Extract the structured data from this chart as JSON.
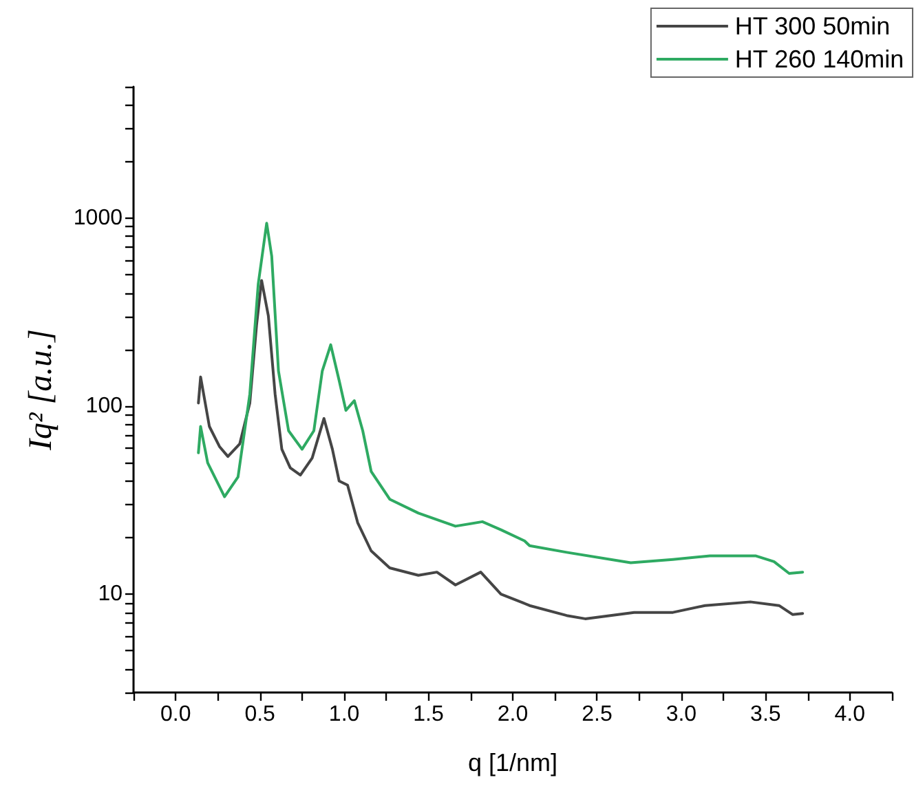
{
  "chart_data": {
    "type": "line",
    "xlabel": "q [1/nm]",
    "ylabel": "Iq² [a.u.]",
    "log": "y",
    "grid": false,
    "legend": "top right",
    "marker": "none",
    "line_style": "solid",
    "xlim": [
      -0.25,
      4.25
    ],
    "xticks": [
      {
        "value": -0.25,
        "label": null
      },
      {
        "value": 0,
        "label": "0.0"
      },
      {
        "value": 0.25,
        "label": null
      },
      {
        "value": 0.5,
        "label": "0.5"
      },
      {
        "value": 0.75,
        "label": null
      },
      {
        "value": 1,
        "label": "1.0"
      },
      {
        "value": 1.25,
        "label": null
      },
      {
        "value": 1.5,
        "label": "1.5"
      },
      {
        "value": 1.75,
        "label": null
      },
      {
        "value": 2,
        "label": "2.0"
      },
      {
        "value": 2.25,
        "label": null
      },
      {
        "value": 2.5,
        "label": "2.5"
      },
      {
        "value": 2.75,
        "label": null
      },
      {
        "value": 3,
        "label": "3.0"
      },
      {
        "value": 3.25,
        "label": null
      },
      {
        "value": 3.5,
        "label": "3.5"
      },
      {
        "value": 3.75,
        "label": null
      },
      {
        "value": 4,
        "label": "4.0"
      },
      {
        "value": 4.25,
        "label": null
      }
    ],
    "ylim": [
      3,
      5000
    ],
    "yticks": [
      {
        "value": 3,
        "label": null
      },
      {
        "value": 4,
        "label": null
      },
      {
        "value": 5,
        "label": null
      },
      {
        "value": 6,
        "label": null
      },
      {
        "value": 7,
        "label": null
      },
      {
        "value": 8,
        "label": null
      },
      {
        "value": 9,
        "label": null
      },
      10,
      {
        "value": 20,
        "label": null
      },
      {
        "value": 30,
        "label": null
      },
      {
        "value": 40,
        "label": null
      },
      {
        "value": 50,
        "label": null
      },
      {
        "value": 60,
        "label": null
      },
      {
        "value": 70,
        "label": null
      },
      {
        "value": 80,
        "label": null
      },
      {
        "value": 90,
        "label": null
      },
      100,
      {
        "value": 200,
        "label": null
      },
      {
        "value": 300,
        "label": null
      },
      {
        "value": 400,
        "label": null
      },
      {
        "value": 500,
        "label": null
      },
      {
        "value": 600,
        "label": null
      },
      {
        "value": 700,
        "label": null
      },
      {
        "value": 800,
        "label": null
      },
      {
        "value": 900,
        "label": null
      },
      1000,
      {
        "value": 2000,
        "label": null
      },
      {
        "value": 3000,
        "label": null
      },
      {
        "value": 4000,
        "label": null
      },
      {
        "value": 5000,
        "label": null
      }
    ],
    "series": [
      {
        "name": "HT 300 50min",
        "color": "#454545",
        "x": [
          0.135,
          0.148,
          0.2,
          0.26,
          0.31,
          0.38,
          0.44,
          0.48,
          0.51,
          0.55,
          0.59,
          0.63,
          0.68,
          0.74,
          0.81,
          0.88,
          0.93,
          0.97,
          1.02,
          1.08,
          1.16,
          1.27,
          1.44,
          1.55,
          1.66,
          1.81,
          1.93,
          2.06,
          2.1,
          2.32,
          2.43,
          2.72,
          2.95,
          3.14,
          3.41,
          3.58,
          3.66,
          3.72
        ],
        "values": [
          104,
          143,
          78,
          61,
          54,
          63,
          104,
          270,
          466,
          302,
          116,
          59,
          47,
          43,
          53,
          86,
          59,
          40,
          38,
          24,
          17,
          13.8,
          12.6,
          13.1,
          11.2,
          13.1,
          10,
          9.0,
          8.7,
          7.7,
          7.4,
          8.0,
          8.0,
          8.7,
          9.1,
          8.7,
          7.8,
          7.9
        ]
      },
      {
        "name": "HT 260 140min",
        "color": "#2eaa62",
        "x": [
          0.135,
          0.148,
          0.19,
          0.29,
          0.37,
          0.44,
          0.49,
          0.54,
          0.57,
          0.61,
          0.67,
          0.75,
          0.82,
          0.87,
          0.92,
          0.97,
          1.01,
          1.06,
          1.11,
          1.16,
          1.27,
          1.44,
          1.66,
          1.82,
          1.93,
          2.07,
          2.1,
          2.32,
          2.7,
          2.95,
          3.17,
          3.44,
          3.55,
          3.64,
          3.72
        ],
        "values": [
          56.5,
          78,
          50,
          33,
          42,
          116,
          447,
          940,
          627,
          154,
          74,
          59,
          74,
          154,
          212,
          137,
          95,
          107,
          74,
          45,
          32,
          27,
          23,
          24.3,
          22,
          19.2,
          18.1,
          16.7,
          14.7,
          15.3,
          16.0,
          16.0,
          14.9,
          12.9,
          13.1
        ]
      }
    ]
  }
}
